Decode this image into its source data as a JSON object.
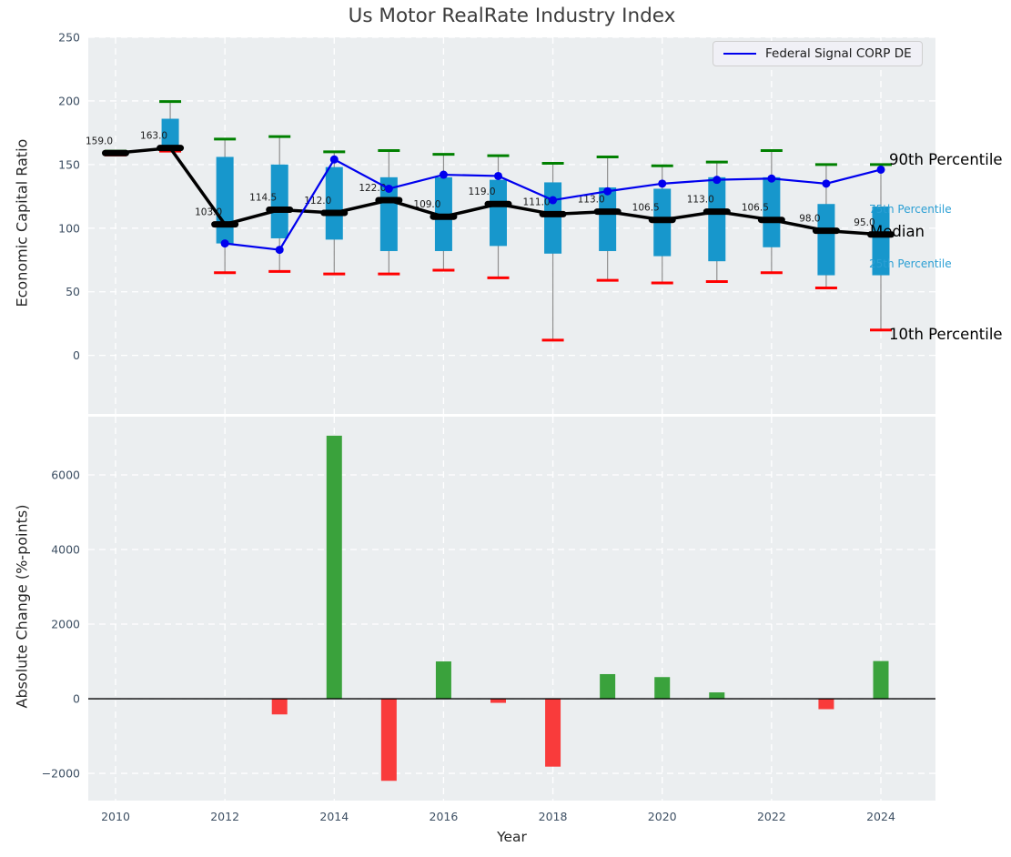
{
  "title": "Us Motor RealRate Industry Index",
  "top_chart": {
    "ylabel": "Economic Capital Ratio",
    "legend_label": "Federal Signal CORP DE",
    "annotations": {
      "p90": "90th Percentile",
      "p75": "75th Percentile",
      "median": "Median",
      "p25": "25th Percentile",
      "p10": "10th Percentile"
    }
  },
  "bottom_chart": {
    "ylabel": "Absolute Change (%-points)",
    "xlabel": "Year"
  },
  "colors": {
    "plot_bg": "#ebeef0",
    "grid": "#ffffff",
    "box_fill": "#1797cc",
    "median_line": "#000000",
    "company_line": "#0000ee",
    "whisker_line": "#8f8f8f",
    "cap_top": "#008000",
    "cap_bottom": "#ff0000",
    "bar_positive": "#3aa23c",
    "bar_negative": "#f93b3b",
    "tick_label": "#3d4f63",
    "median_label": "#1a1a1a"
  },
  "chart_data": [
    {
      "type": "boxplot+line",
      "title": "Us Motor RealRate Industry Index",
      "ylabel": "Economic Capital Ratio",
      "x": [
        2010,
        2011,
        2012,
        2013,
        2014,
        2015,
        2016,
        2017,
        2018,
        2019,
        2020,
        2021,
        2022,
        2023,
        2024
      ],
      "series": [
        {
          "name": "90th Percentile",
          "values": [
            160.5,
            199.5,
            170,
            172,
            160,
            161,
            158,
            157,
            151,
            156,
            149,
            152,
            161,
            150,
            150
          ]
        },
        {
          "name": "75th Percentile",
          "values": [
            159.8,
            186,
            156,
            150,
            148,
            140,
            140,
            138,
            136,
            132,
            131,
            140,
            140,
            119,
            117
          ]
        },
        {
          "name": "Median",
          "values": [
            159.0,
            163.0,
            103.0,
            114.5,
            112.0,
            122.0,
            109.0,
            119.0,
            111.0,
            113.0,
            106.5,
            113.0,
            106.5,
            98.0,
            95.0
          ]
        },
        {
          "name": "25th Percentile",
          "values": [
            158.2,
            161.5,
            88,
            92,
            91,
            82,
            82,
            86,
            80,
            82,
            78,
            74,
            85,
            63,
            63
          ]
        },
        {
          "name": "10th Percentile",
          "values": [
            157.5,
            160.5,
            65,
            66,
            64,
            64,
            67,
            61,
            12,
            59,
            57,
            58,
            65,
            53,
            20
          ]
        },
        {
          "name": "Federal Signal CORP DE",
          "values": [
            null,
            null,
            88,
            83,
            154,
            131,
            142,
            141,
            122,
            129,
            135,
            138,
            139,
            135,
            146
          ]
        }
      ],
      "median_labels": [
        "159.0",
        "163.0",
        "103.0",
        "114.5",
        "112.0",
        "122.0",
        "109.0",
        "119.0",
        "111.0",
        "113.0",
        "106.5",
        "113.0",
        "106.5",
        "98.0",
        "95.0"
      ],
      "yticks": [
        250,
        200,
        150,
        100,
        50,
        0
      ],
      "ylim": [
        -46,
        250
      ],
      "grid": true,
      "legend_position": "upper right"
    },
    {
      "type": "bar",
      "ylabel": "Absolute Change (%-points)",
      "xlabel": "Year",
      "x": [
        2010,
        2011,
        2012,
        2013,
        2014,
        2015,
        2016,
        2017,
        2018,
        2019,
        2020,
        2021,
        2022,
        2023,
        2024
      ],
      "values": [
        null,
        0,
        0,
        -420,
        7050,
        -2200,
        1000,
        -110,
        -1820,
        660,
        580,
        170,
        0,
        -280,
        1010
      ],
      "xticks": [
        2010,
        2012,
        2014,
        2016,
        2018,
        2020,
        2022,
        2024
      ],
      "yticks": [
        6000,
        4000,
        2000,
        0,
        -2000
      ],
      "ylim": [
        -2730,
        7560
      ],
      "grid": true
    }
  ]
}
